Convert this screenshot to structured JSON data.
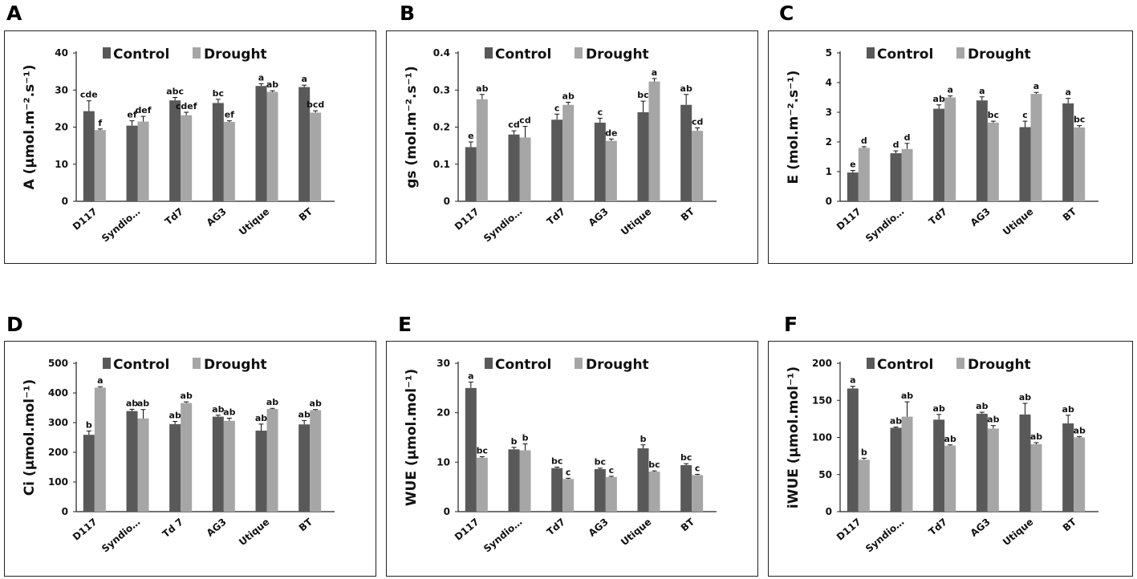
{
  "colors": {
    "control": "#595959",
    "drought": "#a6a6a6"
  },
  "chart_data": [
    {
      "panel": "A",
      "type": "bar",
      "ylabel": "A (µmol.m⁻².s⁻¹)",
      "categories": [
        "D117",
        "Syndio…",
        "Td7",
        "AG3",
        "Utique",
        "BT"
      ],
      "ylim": [
        0,
        40
      ],
      "yticks": [
        0,
        10,
        20,
        30,
        40
      ],
      "legend": [
        "Control",
        "Drought"
      ],
      "series": [
        {
          "name": "Control",
          "values": [
            24.3,
            20.4,
            27.2,
            26.5,
            31.1,
            30.8
          ],
          "errors": [
            2.8,
            1.3,
            0.8,
            1.0,
            0.6,
            0.5
          ],
          "labels": [
            "cde",
            "ef",
            "abc",
            "bc",
            "a",
            "a"
          ]
        },
        {
          "name": "Drought",
          "values": [
            19.2,
            21.5,
            23.2,
            21.4,
            29.5,
            23.9
          ],
          "errors": [
            0.3,
            1.4,
            0.8,
            0.3,
            0.3,
            0.5
          ],
          "labels": [
            "f",
            "def",
            "cdef",
            "ef",
            "ab",
            "bcd"
          ]
        }
      ]
    },
    {
      "panel": "B",
      "type": "bar",
      "ylabel": "gs (mol.m⁻².s⁻¹)",
      "categories": [
        "D117",
        "Syndio…",
        "Td7",
        "AG3",
        "Utique",
        "BT"
      ],
      "ylim": [
        0,
        0.4
      ],
      "yticks": [
        "0",
        "0.1",
        "0.2",
        "0.3",
        "0.4"
      ],
      "legend": [
        "Control",
        "Drought"
      ],
      "series": [
        {
          "name": "Control",
          "values": [
            0.146,
            0.18,
            0.22,
            0.212,
            0.24,
            0.26
          ],
          "errors": [
            0.014,
            0.01,
            0.015,
            0.012,
            0.03,
            0.028
          ],
          "labels": [
            "e",
            "cd",
            "c",
            "c",
            "bc",
            "ab"
          ]
        },
        {
          "name": "Drought",
          "values": [
            0.275,
            0.172,
            0.26,
            0.163,
            0.323,
            0.19
          ],
          "errors": [
            0.013,
            0.03,
            0.007,
            0.005,
            0.008,
            0.008
          ],
          "labels": [
            "ab",
            "cd",
            "ab",
            "de",
            "a",
            "cd"
          ]
        }
      ]
    },
    {
      "panel": "C",
      "type": "bar",
      "ylabel": "E (mol.m⁻².s⁻¹)",
      "categories": [
        "D117",
        "Syndio…",
        "Td7",
        "AG3",
        "Utique",
        "BT"
      ],
      "ylim": [
        0,
        5
      ],
      "yticks": [
        0,
        1,
        2,
        3,
        4,
        5
      ],
      "legend": [
        "Control",
        "Drought"
      ],
      "series": [
        {
          "name": "Control",
          "values": [
            0.97,
            1.62,
            3.12,
            3.4,
            2.5,
            3.3
          ],
          "errors": [
            0.07,
            0.08,
            0.13,
            0.12,
            0.2,
            0.17
          ],
          "labels": [
            "e",
            "d",
            "ab",
            "a",
            "c",
            "a"
          ]
        },
        {
          "name": "Drought",
          "values": [
            1.8,
            1.76,
            3.5,
            2.65,
            3.62,
            2.49
          ],
          "errors": [
            0.04,
            0.19,
            0.05,
            0.05,
            0.05,
            0.06
          ],
          "labels": [
            "d",
            "d",
            "a",
            "bc",
            "a",
            "bc"
          ]
        }
      ]
    },
    {
      "panel": "D",
      "type": "bar",
      "ylabel": "Ci (µmol.mol⁻¹)",
      "categories": [
        "D117",
        "Syndio…",
        "Td 7",
        "AG3",
        "Utique",
        "BT"
      ],
      "ylim": [
        0,
        500
      ],
      "yticks": [
        0,
        100,
        200,
        300,
        400,
        500
      ],
      "legend": [
        "Control",
        "Drought"
      ],
      "series": [
        {
          "name": "Control",
          "values": [
            259,
            339,
            295,
            320,
            273,
            294
          ],
          "errors": [
            13,
            6,
            9,
            5,
            22,
            13
          ],
          "labels": [
            "b",
            "ab",
            "ab",
            "ab",
            "ab",
            "ab"
          ]
        },
        {
          "name": "Drought",
          "values": [
            418,
            314,
            366,
            306,
            346,
            342
          ],
          "errors": [
            3,
            30,
            4,
            9,
            2,
            2
          ],
          "labels": [
            "a",
            "ab",
            "ab",
            "ab",
            "ab",
            "ab"
          ]
        }
      ]
    },
    {
      "panel": "E",
      "type": "bar",
      "ylabel": "WUE (µmol.mol⁻¹)",
      "categories": [
        "D117",
        "Syndio…",
        "Td7",
        "AG3",
        "Utique",
        "BT"
      ],
      "ylim": [
        0,
        30
      ],
      "yticks": [
        0,
        10,
        20,
        30
      ],
      "legend": [
        "Control",
        "Drought"
      ],
      "series": [
        {
          "name": "Control",
          "values": [
            25.0,
            12.6,
            8.8,
            8.6,
            12.8,
            9.4
          ],
          "errors": [
            1.2,
            0.4,
            0.2,
            0.2,
            0.7,
            0.3
          ],
          "labels": [
            "a",
            "b",
            "bc",
            "bc",
            "b",
            "bc"
          ]
        },
        {
          "name": "Drought",
          "values": [
            10.9,
            12.4,
            6.6,
            7.0,
            8.1,
            7.4
          ],
          "errors": [
            0.2,
            1.3,
            0.15,
            0.15,
            0.15,
            0.15
          ],
          "labels": [
            "bc",
            "b",
            "c",
            "c",
            "bc",
            "c"
          ]
        }
      ]
    },
    {
      "panel": "F",
      "type": "bar",
      "ylabel": "iWUE (µmol.mol⁻¹)",
      "categories": [
        "D117",
        "Syndio…",
        "Td7",
        "AG3",
        "Utique",
        "BT"
      ],
      "ylim": [
        0,
        200
      ],
      "yticks": [
        0,
        50,
        100,
        150,
        200
      ],
      "legend": [
        "Control",
        "Drought"
      ],
      "series": [
        {
          "name": "Control",
          "values": [
            166,
            113,
            124,
            132,
            131,
            119
          ],
          "errors": [
            3,
            1,
            7,
            2,
            15,
            11
          ],
          "labels": [
            "a",
            "ab",
            "ab",
            "ab",
            "ab",
            "ab"
          ]
        },
        {
          "name": "Drought",
          "values": [
            70,
            128,
            89,
            112,
            91,
            100
          ],
          "errors": [
            2,
            20,
            1,
            4,
            2,
            1
          ],
          "labels": [
            "b",
            "ab",
            "ab",
            "ab",
            "ab",
            "ab"
          ]
        }
      ]
    }
  ]
}
